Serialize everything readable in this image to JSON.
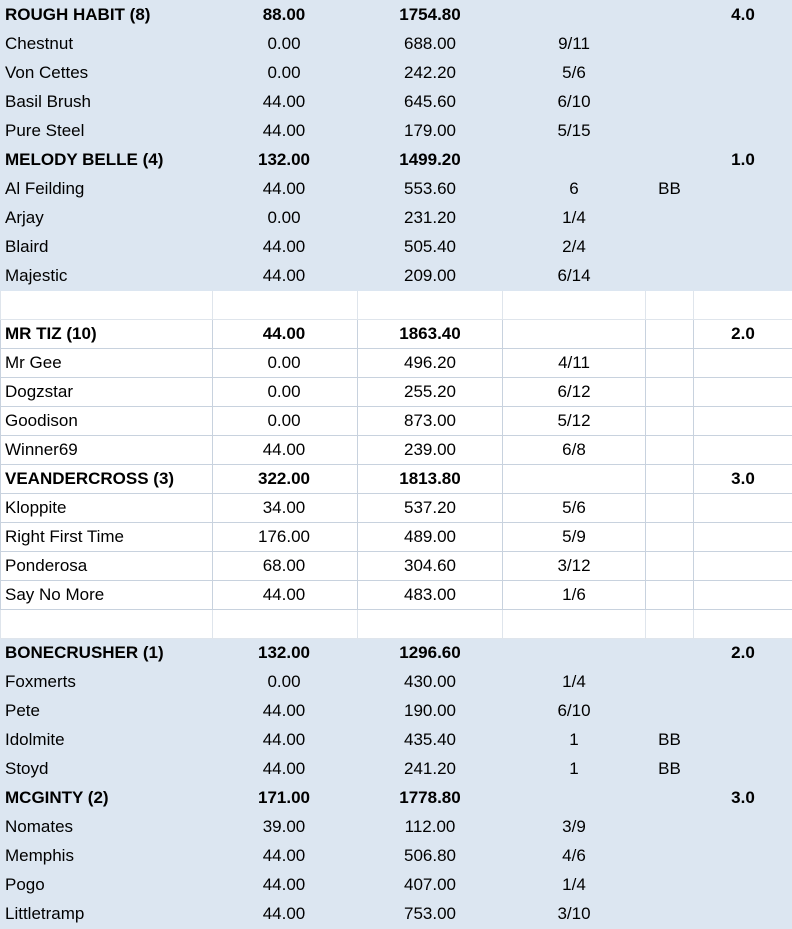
{
  "rows": [
    {
      "kind": "team",
      "shade": true,
      "c0": "ROUGH HABIT (8)",
      "c1": "88.00",
      "c2": "1754.80",
      "c3": "",
      "c4": "",
      "c5": "4.0"
    },
    {
      "kind": "player",
      "shade": true,
      "c0": "Chestnut",
      "c1": "0.00",
      "c2": "688.00",
      "c3": "9/11",
      "c4": "",
      "c5": ""
    },
    {
      "kind": "player",
      "shade": true,
      "c0": "Von Cettes",
      "c1": "0.00",
      "c2": "242.20",
      "c3": "5/6",
      "c4": "",
      "c5": ""
    },
    {
      "kind": "player",
      "shade": true,
      "c0": "Basil Brush",
      "c1": "44.00",
      "c2": "645.60",
      "c3": "6/10",
      "c4": "",
      "c5": ""
    },
    {
      "kind": "player",
      "shade": true,
      "c0": "Pure Steel",
      "c1": "44.00",
      "c2": "179.00",
      "c3": "5/15",
      "c4": "",
      "c5": ""
    },
    {
      "kind": "team",
      "shade": true,
      "c0": "MELODY BELLE (4)",
      "c1": "132.00",
      "c2": "1499.20",
      "c3": "",
      "c4": "",
      "c5": "1.0"
    },
    {
      "kind": "player",
      "shade": true,
      "c0": "Al Feilding",
      "c1": "44.00",
      "c2": "553.60",
      "c3": "6",
      "c4": "BB",
      "c5": ""
    },
    {
      "kind": "player",
      "shade": true,
      "c0": "Arjay",
      "c1": "0.00",
      "c2": "231.20",
      "c3": "1/4",
      "c4": "",
      "c5": ""
    },
    {
      "kind": "player",
      "shade": true,
      "c0": "Blaird",
      "c1": "44.00",
      "c2": "505.40",
      "c3": "2/4",
      "c4": "",
      "c5": ""
    },
    {
      "kind": "player",
      "shade": true,
      "c0": "Majestic",
      "c1": "44.00",
      "c2": "209.00",
      "c3": "6/14",
      "c4": "",
      "c5": ""
    },
    {
      "kind": "blank",
      "shade": false,
      "c0": "",
      "c1": "",
      "c2": "",
      "c3": "",
      "c4": "",
      "c5": ""
    },
    {
      "kind": "team",
      "shade": false,
      "c0": "MR TIZ (10)",
      "c1": "44.00",
      "c2": "1863.40",
      "c3": "",
      "c4": "",
      "c5": "2.0"
    },
    {
      "kind": "player",
      "shade": false,
      "c0": "Mr Gee",
      "c1": "0.00",
      "c2": "496.20",
      "c3": "4/11",
      "c4": "",
      "c5": ""
    },
    {
      "kind": "player",
      "shade": false,
      "c0": "Dogzstar",
      "c1": "0.00",
      "c2": "255.20",
      "c3": "6/12",
      "c4": "",
      "c5": ""
    },
    {
      "kind": "player",
      "shade": false,
      "c0": "Goodison",
      "c1": "0.00",
      "c2": "873.00",
      "c3": "5/12",
      "c4": "",
      "c5": ""
    },
    {
      "kind": "player",
      "shade": false,
      "c0": "Winner69",
      "c1": "44.00",
      "c2": "239.00",
      "c3": "6/8",
      "c4": "",
      "c5": ""
    },
    {
      "kind": "team",
      "shade": false,
      "c0": "VEANDERCROSS (3)",
      "c1": "322.00",
      "c2": "1813.80",
      "c3": "",
      "c4": "",
      "c5": "3.0"
    },
    {
      "kind": "player",
      "shade": false,
      "c0": "Kloppite",
      "c1": "34.00",
      "c2": "537.20",
      "c3": "5/6",
      "c4": "",
      "c5": ""
    },
    {
      "kind": "player",
      "shade": false,
      "c0": "Right First Time",
      "c1": "176.00",
      "c2": "489.00",
      "c3": "5/9",
      "c4": "",
      "c5": ""
    },
    {
      "kind": "player",
      "shade": false,
      "c0": "Ponderosa",
      "c1": "68.00",
      "c2": "304.60",
      "c3": "3/12",
      "c4": "",
      "c5": ""
    },
    {
      "kind": "player",
      "shade": false,
      "c0": "Say No More",
      "c1": "44.00",
      "c2": "483.00",
      "c3": "1/6",
      "c4": "",
      "c5": ""
    },
    {
      "kind": "blank",
      "shade": false,
      "c0": "",
      "c1": "",
      "c2": "",
      "c3": "",
      "c4": "",
      "c5": ""
    },
    {
      "kind": "team",
      "shade": true,
      "c0": "BONECRUSHER (1)",
      "c1": "132.00",
      "c2": "1296.60",
      "c3": "",
      "c4": "",
      "c5": "2.0"
    },
    {
      "kind": "player",
      "shade": true,
      "c0": "Foxmerts",
      "c1": "0.00",
      "c2": "430.00",
      "c3": "1/4",
      "c4": "",
      "c5": ""
    },
    {
      "kind": "player",
      "shade": true,
      "c0": "Pete",
      "c1": "44.00",
      "c2": "190.00",
      "c3": "6/10",
      "c4": "",
      "c5": ""
    },
    {
      "kind": "player",
      "shade": true,
      "c0": "Idolmite",
      "c1": "44.00",
      "c2": "435.40",
      "c3": "1",
      "c4": "BB",
      "c5": ""
    },
    {
      "kind": "player",
      "shade": true,
      "c0": "Stoyd",
      "c1": "44.00",
      "c2": "241.20",
      "c3": "1",
      "c4": "BB",
      "c5": ""
    },
    {
      "kind": "team",
      "shade": true,
      "c0": "MCGINTY (2)",
      "c1": "171.00",
      "c2": "1778.80",
      "c3": "",
      "c4": "",
      "c5": "3.0"
    },
    {
      "kind": "player",
      "shade": true,
      "c0": "Nomates",
      "c1": "39.00",
      "c2": "112.00",
      "c3": "3/9",
      "c4": "",
      "c5": ""
    },
    {
      "kind": "player",
      "shade": true,
      "c0": "Memphis",
      "c1": "44.00",
      "c2": "506.80",
      "c3": "4/6",
      "c4": "",
      "c5": ""
    },
    {
      "kind": "player",
      "shade": true,
      "c0": "Pogo",
      "c1": "44.00",
      "c2": "407.00",
      "c3": "1/4",
      "c4": "",
      "c5": ""
    },
    {
      "kind": "player",
      "shade": true,
      "c0": "Littletramp",
      "c1": "44.00",
      "c2": "753.00",
      "c3": "3/10",
      "c4": "",
      "c5": ""
    }
  ],
  "colors": {
    "shade": "#dce6f1",
    "grid": "#c8d2de",
    "background": "#ffffff",
    "text": "#000000"
  }
}
